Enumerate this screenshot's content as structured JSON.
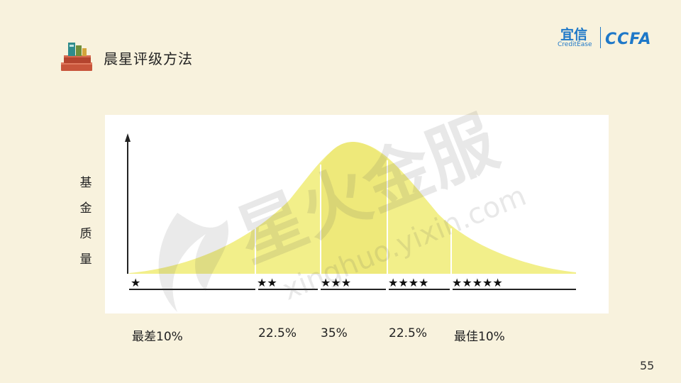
{
  "header": {
    "title": "晨星评级方法",
    "logo_cn": "宜信",
    "logo_en": "CreditEase",
    "logo_ccfa": "CCFA"
  },
  "diagram": {
    "ylabel_chars": [
      "基",
      "金",
      "质",
      "量"
    ],
    "stars": [
      "★",
      "★★",
      "★★★",
      "★★★★",
      "★★★★★"
    ],
    "percent_labels": [
      "最差10%",
      "22.5%",
      "35%",
      "22.5%",
      "最佳10%"
    ],
    "curve_color": "#f2ef8a",
    "curve_color_mid": "#eee97a"
  },
  "watermark": {
    "cn": "星火金服",
    "en": "xinghuo.yixin.com"
  },
  "footer": {
    "page_number": "55"
  }
}
